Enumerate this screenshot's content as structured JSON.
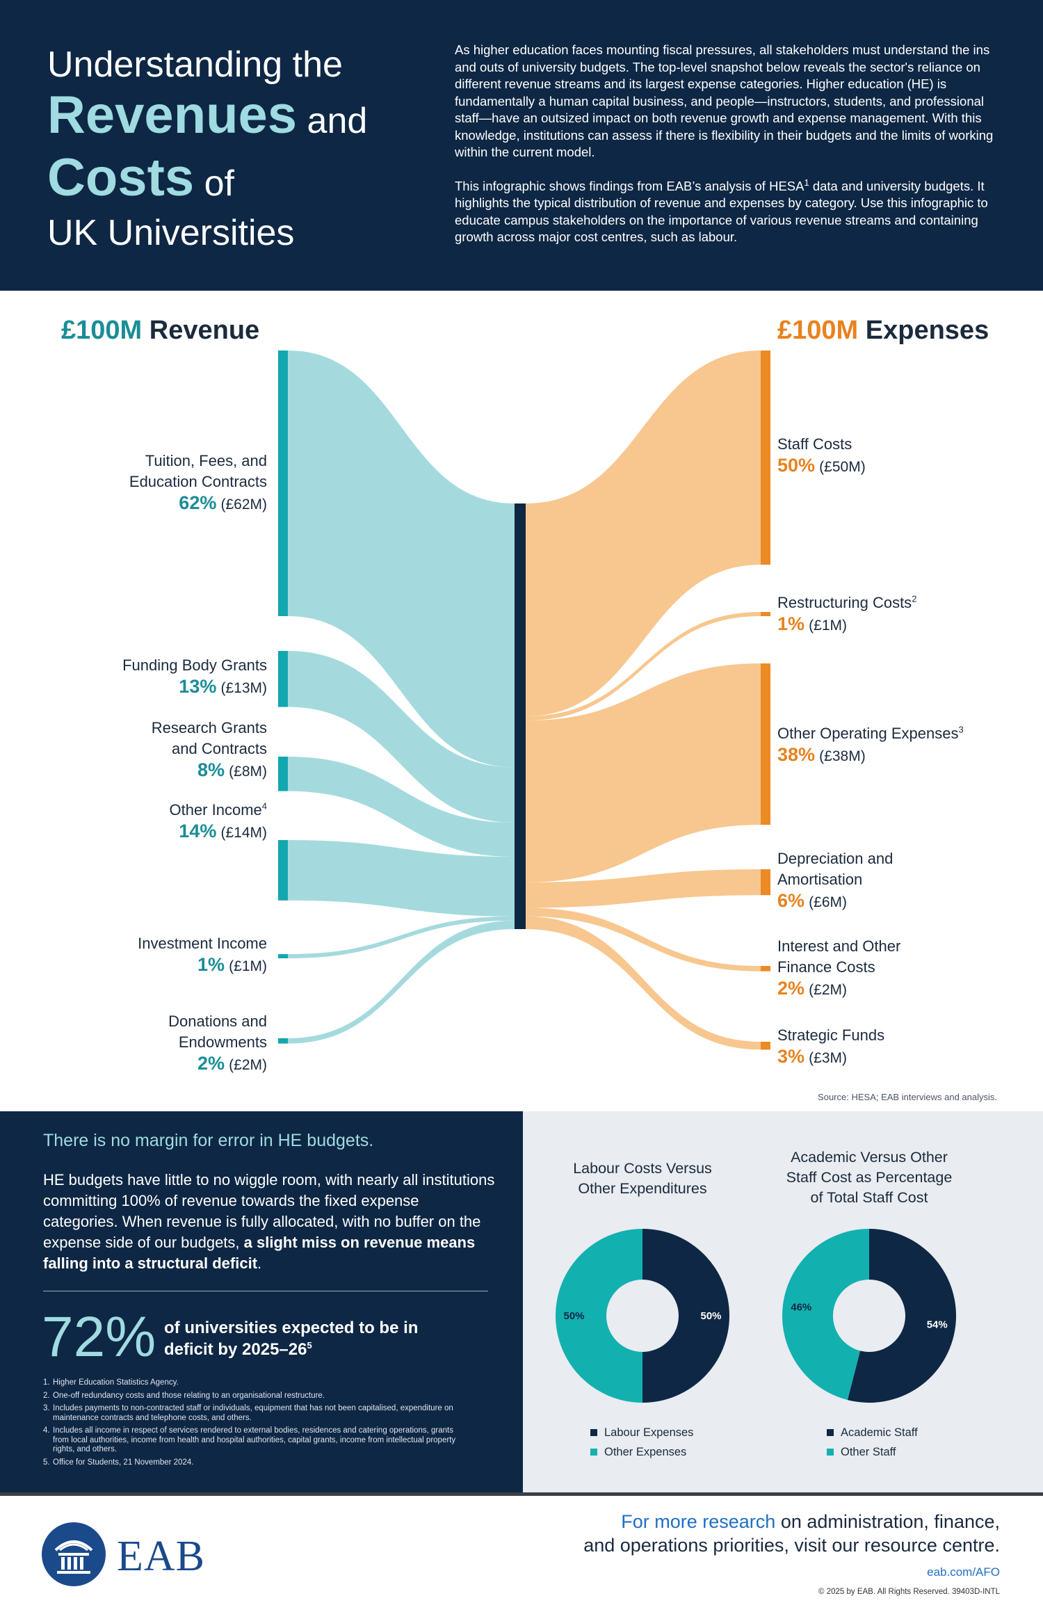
{
  "header": {
    "title_line1": "Understanding the",
    "title_word_revenues": "Revenues",
    "title_and": "and",
    "title_word_costs": "Costs",
    "title_of": "of",
    "title_line4": "UK Universities",
    "para1": "As higher education faces mounting fiscal pressures, all stakeholders must understand the ins and outs of university budgets. The top-level snapshot below reveals the sector's reliance on different revenue streams and its largest expense categories. Higher education (HE) is fundamentally a human capital business, and people—instructors, students, and professional staff—have an outsized impact on both revenue growth and expense management. With this knowledge, institutions can assess if there is flexibility in their budgets and the limits of working within the current model.",
    "para2_pre": "This infographic shows findings from EAB’s analysis of HESA",
    "para2_sup": "1",
    "para2_post": " data and university budgets. It highlights the typical distribution of revenue and expenses by category. Use this infographic to educate campus stakeholders on the importance of various revenue streams and containing growth across major cost centres, such as labour."
  },
  "sankey": {
    "revenue_title_amount": "£100M",
    "revenue_title_word": "Revenue",
    "expense_title_amount": "£100M",
    "expense_title_word": "Expenses",
    "revenue_labels": [
      {
        "name_a": "Tuition, Fees, and",
        "name_b": "Education Contracts",
        "pct": "62%",
        "amt": "(£62M)"
      },
      {
        "name_a": "Funding Body Grants",
        "name_b": "",
        "pct": "13%",
        "amt": "(£13M)"
      },
      {
        "name_a": "Research Grants",
        "name_b": "and Contracts",
        "pct": "8%",
        "amt": "(£8M)"
      },
      {
        "name_a": "Other Income",
        "sup": "4",
        "name_b": "",
        "pct": "14%",
        "amt": "(£14M)"
      },
      {
        "name_a": "Investment Income",
        "name_b": "",
        "pct": "1%",
        "amt": "(£1M)"
      },
      {
        "name_a": "Donations and",
        "name_b": "Endowments",
        "pct": "2%",
        "amt": "(£2M)"
      }
    ],
    "expense_labels": [
      {
        "name_a": "Staff Costs",
        "name_b": "",
        "pct": "50%",
        "amt": "(£50M)"
      },
      {
        "name_a": "Restructuring Costs",
        "sup": "2",
        "name_b": "",
        "pct": "1%",
        "amt": "(£1M)"
      },
      {
        "name_a": "Other Operating Expenses",
        "sup": "3",
        "name_b": "",
        "pct": "38%",
        "amt": "(£38M)"
      },
      {
        "name_a": "Depreciation and",
        "name_b": "Amortisation",
        "pct": "6%",
        "amt": "(£6M)"
      },
      {
        "name_a": "Interest and Other",
        "name_b": "Finance Costs",
        "pct": "2%",
        "amt": "(£2M)"
      },
      {
        "name_a": "Strategic Funds",
        "name_b": "",
        "pct": "3%",
        "amt": "(£3M)"
      }
    ],
    "source": "Source: HESA; EAB interviews and analysis."
  },
  "chart_data": [
    {
      "type": "sankey",
      "title": "£100M Revenue / £100M Expenses",
      "units": "£M",
      "sources": [
        {
          "name": "Tuition, Fees, and Education Contracts",
          "value": 62
        },
        {
          "name": "Funding Body Grants",
          "value": 13
        },
        {
          "name": "Research Grants and Contracts",
          "value": 8
        },
        {
          "name": "Other Income",
          "value": 14
        },
        {
          "name": "Investment Income",
          "value": 1
        },
        {
          "name": "Donations and Endowments",
          "value": 2
        }
      ],
      "targets": [
        {
          "name": "Staff Costs",
          "value": 50
        },
        {
          "name": "Restructuring Costs",
          "value": 1
        },
        {
          "name": "Other Operating Expenses",
          "value": 38
        },
        {
          "name": "Depreciation and Amortisation",
          "value": 6
        },
        {
          "name": "Interest and Other Finance Costs",
          "value": 2
        },
        {
          "name": "Strategic Funds",
          "value": 3
        }
      ],
      "colors": {
        "revenue": "#a4dade",
        "revenue_bar": "#13a7b0",
        "expense": "#f7c78f",
        "expense_bar": "#ec8a24",
        "center": "#0e2744"
      }
    },
    {
      "type": "pie",
      "title": "Labour Costs Versus Other Expenditures",
      "categories": [
        "Labour Expenses",
        "Other Expenses"
      ],
      "values": [
        50,
        50
      ],
      "labels": [
        "50%",
        "50%"
      ],
      "colors": [
        "#0e2744",
        "#13b0b0"
      ]
    },
    {
      "type": "pie",
      "title": "Academic Versus Other Staff Cost as Percentage of Total Staff Cost",
      "categories": [
        "Academic Staff",
        "Other Staff"
      ],
      "values": [
        54,
        46
      ],
      "labels": [
        "54%",
        "46%"
      ],
      "colors": [
        "#0e2744",
        "#13b0b0"
      ]
    }
  ],
  "margin_panel": {
    "heading": "There is no margin for error in HE budgets.",
    "body_pre": "HE budgets have little to no wiggle room, with nearly all institutions committing 100% of revenue towards the fixed expense categories. When revenue is fully allocated, with no buffer on the expense side of our budgets, ",
    "body_bold": "a slight miss on revenue means falling into a structural deficit",
    "body_post": ".",
    "stat": "72%",
    "stat_text": "of universities expected to be in deficit by 2025–26",
    "stat_sup": "5",
    "footnotes": [
      {
        "n": "1.",
        "t": "Higher Education Statistics Agency."
      },
      {
        "n": "2.",
        "t": "One-off redundancy costs and those relating to an organisational restructure."
      },
      {
        "n": "3.",
        "t": "Includes payments to non-contracted staff or individuals, equipment that has not been capitalised, expenditure on maintenance contracts and telephone costs, and others."
      },
      {
        "n": "4.",
        "t": "Includes all income in respect of services rendered to external bodies, residences and catering operations, grants from local authorities, income from health and hospital authorities, capital grants, income from intellectual property rights, and others."
      },
      {
        "n": "5.",
        "t": "Office for Students, 21 November 2024."
      }
    ]
  },
  "donuts": {
    "d1_title_a": "Labour Costs Versus",
    "d1_title_b": "Other Expenditures",
    "d1_legend": [
      "Labour Expenses",
      "Other Expenses"
    ],
    "d2_title_a": "Academic Versus Other",
    "d2_title_b": "Staff Cost as Percentage",
    "d2_title_c": "of Total Staff Cost",
    "d2_legend": [
      "Academic Staff",
      "Other Staff"
    ]
  },
  "footer": {
    "logo_text": "EAB",
    "cta_highlight": "For more research",
    "cta_rest_a": " on administration, finance,",
    "cta_line2": "and operations priorities, visit our resource centre.",
    "url": "eab.com/AFO",
    "copyright": "© 2025 by EAB. All Rights Reserved. 39403D-INTL"
  }
}
